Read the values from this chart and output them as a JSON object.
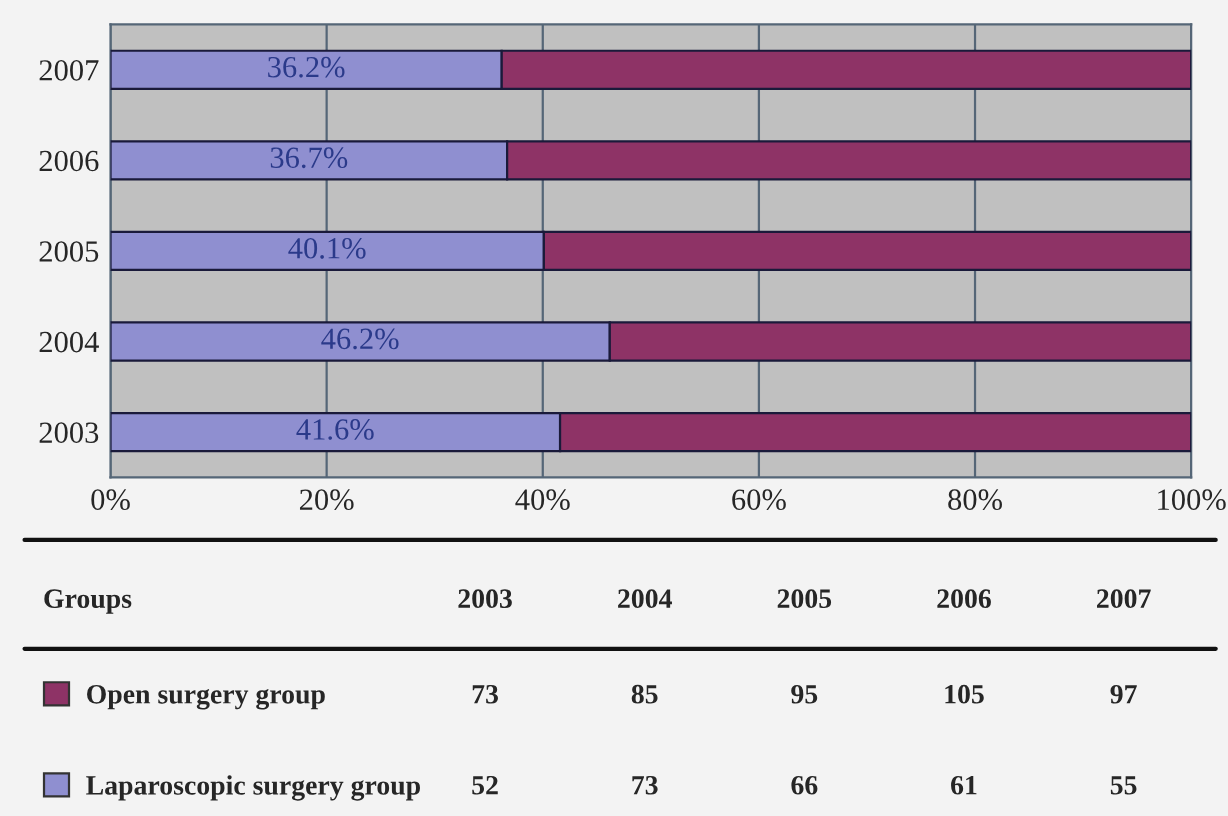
{
  "chart_data": {
    "type": "bar",
    "orientation": "horizontal",
    "stacked": true,
    "categories": [
      "2007",
      "2006",
      "2005",
      "2004",
      "2003"
    ],
    "series": [
      {
        "name": "Laparoscopic surgery group",
        "color": "#8f8fd0",
        "values": [
          36.2,
          36.7,
          40.1,
          46.2,
          41.6
        ],
        "value_labels": [
          "36.2%",
          "36.7%",
          "40.1%",
          "46.2%",
          "41.6%"
        ]
      },
      {
        "name": "Open surgery group",
        "color": "#8e3366",
        "values": [
          63.8,
          63.3,
          59.9,
          53.8,
          58.4
        ]
      }
    ],
    "xlim": [
      0,
      100
    ],
    "xticks": [
      {
        "value": 0,
        "label": "0%"
      },
      {
        "value": 20,
        "label": "20%"
      },
      {
        "value": 40,
        "label": "40%"
      },
      {
        "value": 60,
        "label": "60%"
      },
      {
        "value": 80,
        "label": "80%"
      },
      {
        "value": 100,
        "label": "100%"
      }
    ],
    "grid": "x",
    "legend": "bottom",
    "legend_title": "Groups",
    "annotations": [
      "2003",
      "2004",
      "2005",
      "2006",
      "2007",
      "73",
      "85",
      "95",
      "105",
      "97",
      "52",
      "73",
      "66",
      "61",
      "55"
    ]
  }
}
